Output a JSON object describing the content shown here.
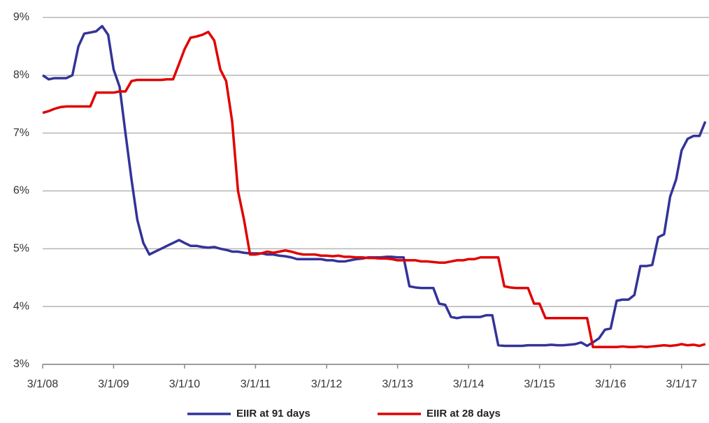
{
  "chart_data": {
    "type": "line",
    "x": [
      "2008-03-01",
      "2008-04-01",
      "2008-05-01",
      "2008-06-01",
      "2008-07-01",
      "2008-08-01",
      "2008-09-01",
      "2008-10-01",
      "2008-11-01",
      "2008-12-01",
      "2009-01-01",
      "2009-02-01",
      "2009-03-01",
      "2009-04-01",
      "2009-05-01",
      "2009-06-01",
      "2009-07-01",
      "2009-08-01",
      "2009-09-01",
      "2009-10-01",
      "2009-11-01",
      "2009-12-01",
      "2010-01-01",
      "2010-02-01",
      "2010-03-01",
      "2010-04-01",
      "2010-05-01",
      "2010-06-01",
      "2010-07-01",
      "2010-08-01",
      "2010-09-01",
      "2010-10-01",
      "2010-11-01",
      "2010-12-01",
      "2011-01-01",
      "2011-02-01",
      "2011-03-01",
      "2011-04-01",
      "2011-05-01",
      "2011-06-01",
      "2011-07-01",
      "2011-08-01",
      "2011-09-01",
      "2011-10-01",
      "2011-11-01",
      "2011-12-01",
      "2012-01-01",
      "2012-02-01",
      "2012-03-01",
      "2012-04-01",
      "2012-05-01",
      "2012-06-01",
      "2012-07-01",
      "2012-08-01",
      "2012-09-01",
      "2012-10-01",
      "2012-11-01",
      "2012-12-01",
      "2013-01-01",
      "2013-02-01",
      "2013-03-01",
      "2013-04-01",
      "2013-05-01",
      "2013-06-01",
      "2013-07-01",
      "2013-08-01",
      "2013-09-01",
      "2013-10-01",
      "2013-11-01",
      "2013-12-01",
      "2014-01-01",
      "2014-02-01",
      "2014-03-01",
      "2014-04-01",
      "2014-05-01",
      "2014-06-01",
      "2014-07-01",
      "2014-08-01",
      "2014-09-01",
      "2014-10-01",
      "2014-11-01",
      "2014-12-01",
      "2015-01-01",
      "2015-02-01",
      "2015-03-01",
      "2015-04-01",
      "2015-05-01",
      "2015-06-01",
      "2015-07-01",
      "2015-08-01",
      "2015-09-01",
      "2015-10-01",
      "2015-11-01",
      "2015-12-01",
      "2016-01-01",
      "2016-02-01",
      "2016-03-01",
      "2016-04-01",
      "2016-05-01",
      "2016-06-01",
      "2016-07-01",
      "2016-08-01",
      "2016-09-01",
      "2016-10-01",
      "2016-11-01",
      "2016-12-01",
      "2017-01-01",
      "2017-02-01",
      "2017-03-01",
      "2017-04-01",
      "2017-05-01",
      "2017-06-01",
      "2017-07-01"
    ],
    "series": [
      {
        "name": "EIIR at 91 days",
        "color": "#333399",
        "values": [
          8.0,
          7.93,
          7.95,
          7.95,
          7.95,
          8.0,
          8.5,
          8.72,
          8.74,
          8.76,
          8.85,
          8.7,
          8.1,
          7.8,
          7.0,
          6.2,
          5.5,
          5.1,
          4.9,
          4.95,
          5.0,
          5.05,
          5.1,
          5.15,
          5.1,
          5.05,
          5.05,
          5.03,
          5.02,
          5.03,
          5.0,
          4.98,
          4.95,
          4.95,
          4.93,
          4.92,
          4.92,
          4.92,
          4.9,
          4.9,
          4.88,
          4.87,
          4.85,
          4.82,
          4.82,
          4.82,
          4.82,
          4.82,
          4.8,
          4.8,
          4.78,
          4.78,
          4.8,
          4.82,
          4.83,
          4.85,
          4.85,
          4.85,
          4.86,
          4.86,
          4.85,
          4.85,
          4.35,
          4.33,
          4.32,
          4.32,
          4.32,
          4.05,
          4.03,
          3.82,
          3.8,
          3.82,
          3.82,
          3.82,
          3.82,
          3.85,
          3.85,
          3.33,
          3.32,
          3.32,
          3.32,
          3.32,
          3.33,
          3.33,
          3.33,
          3.33,
          3.34,
          3.33,
          3.33,
          3.34,
          3.35,
          3.38,
          3.32,
          3.38,
          3.45,
          3.6,
          3.62,
          4.1,
          4.12,
          4.12,
          4.2,
          4.7,
          4.7,
          4.72,
          5.2,
          5.25,
          5.9,
          6.2,
          6.7,
          6.9,
          6.95,
          6.95,
          7.2
        ]
      },
      {
        "name": "EIIR at 28 days",
        "color": "#e00000",
        "values": [
          7.35,
          7.38,
          7.42,
          7.45,
          7.46,
          7.46,
          7.46,
          7.46,
          7.46,
          7.7,
          7.7,
          7.7,
          7.7,
          7.72,
          7.72,
          7.9,
          7.92,
          7.92,
          7.92,
          7.92,
          7.92,
          7.93,
          7.93,
          8.2,
          8.45,
          8.65,
          8.67,
          8.7,
          8.75,
          8.6,
          8.1,
          7.9,
          7.2,
          6.0,
          5.5,
          4.9,
          4.9,
          4.92,
          4.95,
          4.93,
          4.95,
          4.97,
          4.95,
          4.92,
          4.9,
          4.9,
          4.9,
          4.88,
          4.88,
          4.87,
          4.88,
          4.86,
          4.86,
          4.85,
          4.85,
          4.84,
          4.84,
          4.83,
          4.83,
          4.82,
          4.8,
          4.8,
          4.8,
          4.8,
          4.78,
          4.78,
          4.77,
          4.76,
          4.76,
          4.78,
          4.8,
          4.8,
          4.82,
          4.82,
          4.85,
          4.85,
          4.85,
          4.85,
          4.35,
          4.33,
          4.32,
          4.32,
          4.32,
          4.05,
          4.05,
          3.8,
          3.8,
          3.8,
          3.8,
          3.8,
          3.8,
          3.8,
          3.8,
          3.3,
          3.3,
          3.3,
          3.3,
          3.3,
          3.31,
          3.3,
          3.3,
          3.31,
          3.3,
          3.31,
          3.32,
          3.33,
          3.32,
          3.33,
          3.35,
          3.33,
          3.34,
          3.32,
          3.35
        ]
      }
    ],
    "xlim": [
      "2008-03-01",
      "2017-07-20"
    ],
    "xticks": [
      {
        "value": "2008-03-01",
        "label": "3/1/08"
      },
      {
        "value": "2009-03-01",
        "label": "3/1/09"
      },
      {
        "value": "2010-03-01",
        "label": "3/1/10"
      },
      {
        "value": "2011-03-01",
        "label": "3/1/11"
      },
      {
        "value": "2012-03-01",
        "label": "3/1/12"
      },
      {
        "value": "2013-03-01",
        "label": "3/1/13"
      },
      {
        "value": "2014-03-01",
        "label": "3/1/14"
      },
      {
        "value": "2015-03-01",
        "label": "3/1/15"
      },
      {
        "value": "2016-03-01",
        "label": "3/1/16"
      },
      {
        "value": "2017-03-01",
        "label": "3/1/17"
      }
    ],
    "ylim": [
      3,
      9
    ],
    "yticks": [
      {
        "value": 3,
        "label": "3%"
      },
      {
        "value": 4,
        "label": "4%"
      },
      {
        "value": 5,
        "label": "5%"
      },
      {
        "value": 6,
        "label": "6%"
      },
      {
        "value": 7,
        "label": "7%"
      },
      {
        "value": 8,
        "label": "8%"
      },
      {
        "value": 9,
        "label": "9%"
      }
    ],
    "grid": true,
    "legend": "bottom"
  }
}
